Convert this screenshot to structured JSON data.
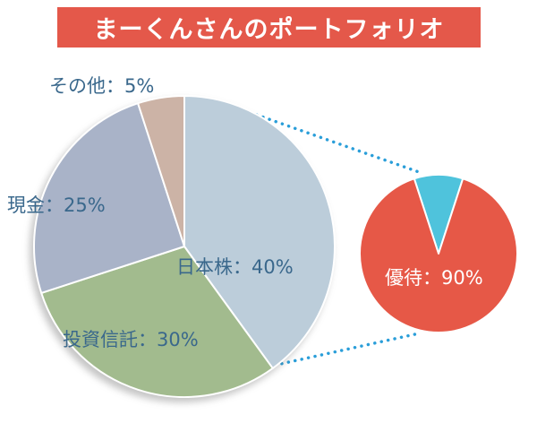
{
  "header": {
    "title": "まーくんさんのポートフォリオ"
  },
  "colors": {
    "header_bg": "#e4584a",
    "label_text": "#3a688c",
    "connector": "#2a9ed9",
    "slice_stroke": "#ffffff"
  },
  "chart_data": [
    {
      "type": "pie",
      "name": "portfolio-total",
      "start_angle": 0,
      "legend_position": "on-chart",
      "slices": [
        {
          "label": "日本株：40%",
          "value": 40,
          "color": "#bccdda"
        },
        {
          "label": "投資信託：30%",
          "value": 30,
          "color": "#a2bb8e"
        },
        {
          "label": "現金：25%",
          "value": 25,
          "color": "#a9b3c8"
        },
        {
          "label": "その他：5%",
          "value": 5,
          "color": "#ccb3a6"
        }
      ]
    },
    {
      "type": "pie",
      "name": "japan-stock-breakdown",
      "start_angle": -18,
      "legend_position": "on-chart",
      "slices": [
        {
          "label": "",
          "value": 10,
          "color": "#4fc3dc"
        },
        {
          "label": "優待：90%",
          "value": 90,
          "color": "#e65847"
        }
      ]
    }
  ]
}
